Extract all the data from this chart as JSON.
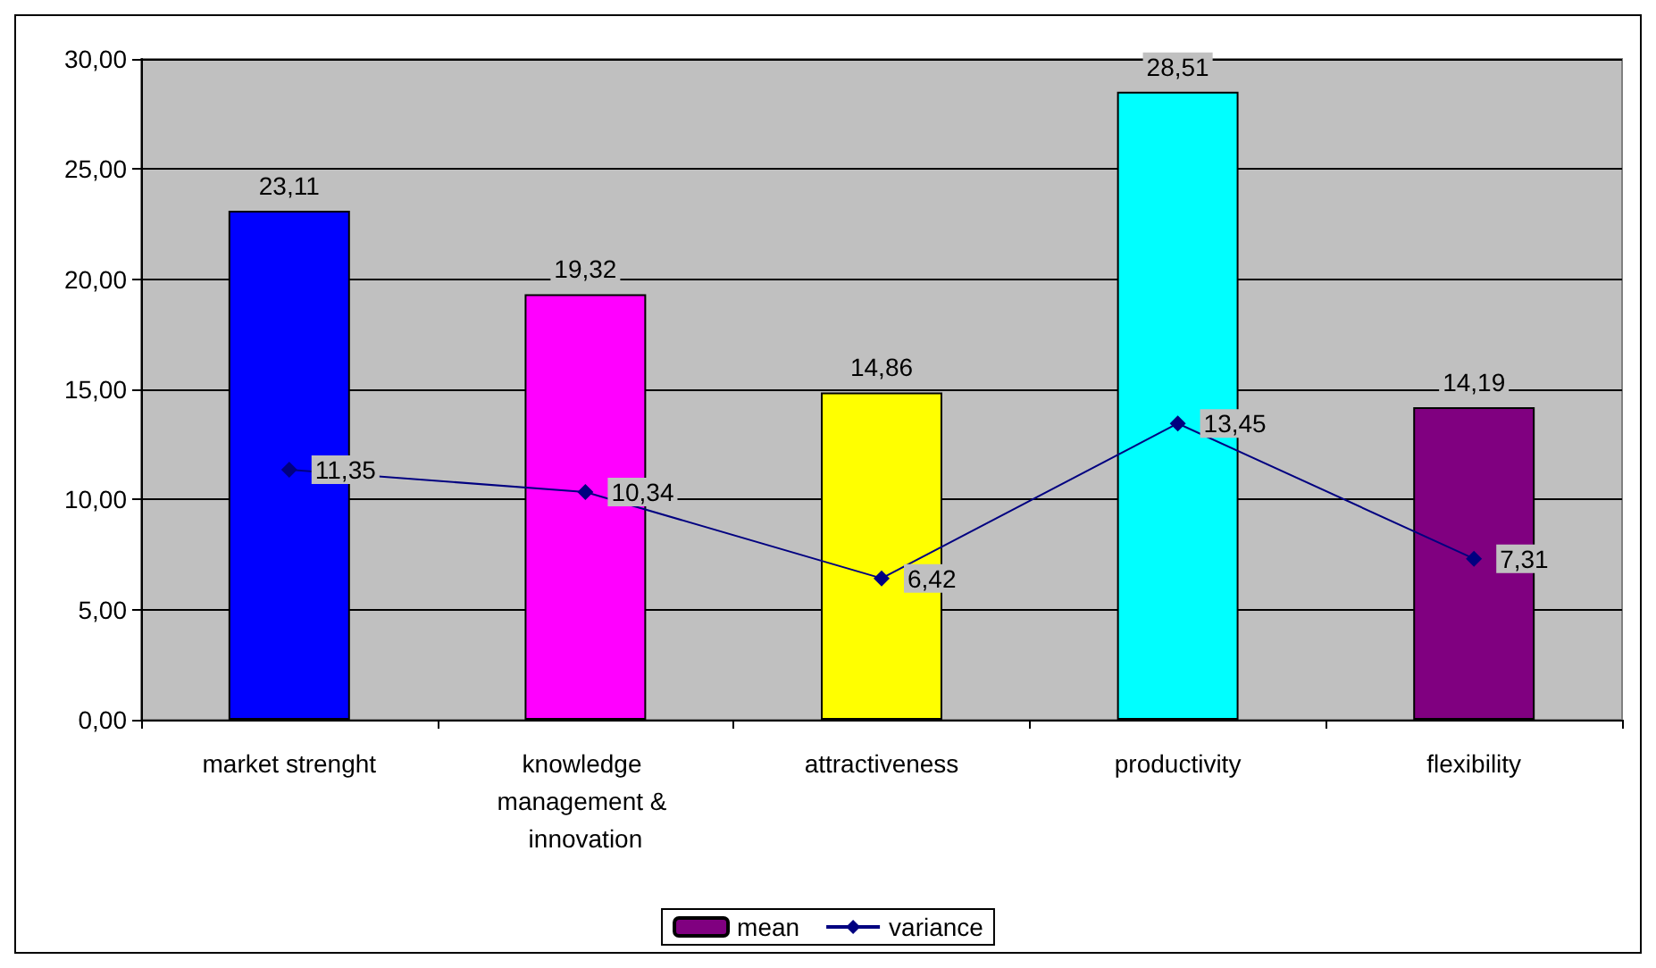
{
  "chart_data": {
    "type": "bar",
    "categories": [
      "market strenght",
      "knowledge management & innovation",
      "attractiveness",
      "productivity",
      "flexibility"
    ],
    "series": [
      {
        "name": "mean",
        "color": "#800080",
        "colors": [
          "#0000ff",
          "#ff00ff",
          "#ffff00",
          "#00ffff",
          "#800080"
        ],
        "values": [
          23.11,
          19.32,
          14.86,
          28.51,
          14.19
        ],
        "value_labels": [
          "23,11",
          "19,32",
          "14,86",
          "28,51",
          "14,19"
        ]
      },
      {
        "name": "variance",
        "type": "line",
        "color": "#000080",
        "marker": "diamond",
        "values": [
          11.35,
          10.34,
          6.42,
          13.45,
          7.31
        ],
        "value_labels": [
          "11,35",
          "10,34",
          "6,42",
          "13,45",
          "7,31"
        ]
      }
    ],
    "ylim": [
      0,
      30
    ],
    "yticks": [
      {
        "value": 0,
        "label": "0,00"
      },
      {
        "value": 5,
        "label": "5,00"
      },
      {
        "value": 10,
        "label": "10,00"
      },
      {
        "value": 15,
        "label": "15,00"
      },
      {
        "value": 20,
        "label": "20,00"
      },
      {
        "value": 25,
        "label": "25,00"
      },
      {
        "value": 30,
        "label": "30,00"
      }
    ],
    "grid": "y",
    "legend": "bottom"
  }
}
